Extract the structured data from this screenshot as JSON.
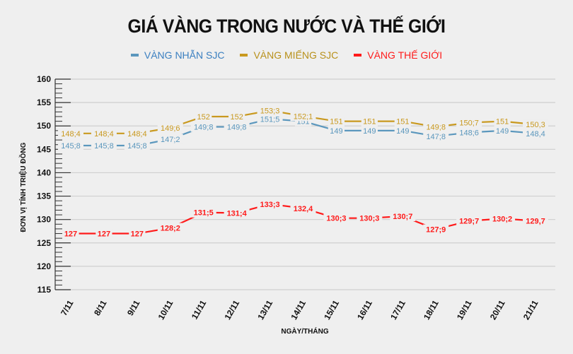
{
  "header": {
    "title": "GIÁ VÀNG TRONG NƯỚC VÀ THẾ GIỚI"
  },
  "legend": [
    {
      "label": "VÀNG NHẪN SJC",
      "color": "#5b97bd",
      "text_color": "#3a7fc0"
    },
    {
      "label": "VÀNG MIẾNG SJC",
      "color": "#c9991f",
      "text_color": "#b8901a"
    },
    {
      "label": "VÀNG THẾ GIỚI",
      "color": "#ff1a1a",
      "text_color": "#ff1a1a"
    }
  ],
  "axes": {
    "ylabel": "ĐƠN VỊ TÍNH TRIỆU ĐỒNG",
    "xlabel": "NGÀY/THÁNG"
  },
  "chart_data": {
    "type": "line",
    "title": "GIÁ VÀNG TRONG NƯỚC VÀ THẾ GIỚI",
    "xlabel": "NGÀY/THÁNG",
    "ylabel": "ĐƠN VỊ TÍNH TRIỆU ĐỒNG",
    "ylim": [
      115,
      160
    ],
    "yticks": [
      115,
      120,
      125,
      130,
      135,
      140,
      145,
      150,
      155,
      160
    ],
    "grid": true,
    "legend_position": "top",
    "categories": [
      "7/11",
      "8/11",
      "9/11",
      "10/11",
      "11/11",
      "12/11",
      "13/11",
      "14/11",
      "15/11",
      "16/11",
      "17/11",
      "18/11",
      "19/11",
      "20/11",
      "21/11"
    ],
    "series": [
      {
        "name": "VÀNG NHẪN SJC",
        "color": "#5b97bd",
        "values": [
          145.8,
          145.8,
          145.8,
          147.2,
          149.8,
          149.8,
          151.5,
          151,
          149,
          149,
          149,
          147.8,
          148.6,
          149,
          148.4
        ],
        "labels": [
          "145;8",
          "145;8",
          "145;8",
          "147;2",
          "149;8",
          "149;8",
          "151;5",
          "151",
          "149",
          "149",
          "149",
          "147;8",
          "148;6",
          "149",
          "148,4"
        ]
      },
      {
        "name": "VÀNG MIẾNG SJC",
        "color": "#c9991f",
        "values": [
          148.4,
          148.4,
          148.4,
          149.6,
          152,
          152,
          153.3,
          152.1,
          151,
          151,
          151,
          149.8,
          150.7,
          151,
          150.3
        ],
        "labels": [
          "148;4",
          "148;4",
          "148;4",
          "149;6",
          "152",
          "152",
          "153;3",
          "152;1",
          "151",
          "151",
          "151",
          "149;8",
          "150;7",
          "151",
          "150,3"
        ]
      },
      {
        "name": "VÀNG THẾ GIỚI",
        "color": "#ff1a1a",
        "values": [
          127,
          127,
          127,
          128.2,
          131.5,
          131.4,
          133.3,
          132.4,
          130.3,
          130.3,
          130.7,
          127.9,
          129.7,
          130.2,
          129.7
        ],
        "labels": [
          "127",
          "127",
          "127",
          "128;2",
          "131;5",
          "131;4",
          "133;3",
          "132,4",
          "130;3",
          "130;3",
          "130;7",
          "127;9",
          "129;7",
          "130;2",
          "129,7"
        ]
      }
    ]
  }
}
